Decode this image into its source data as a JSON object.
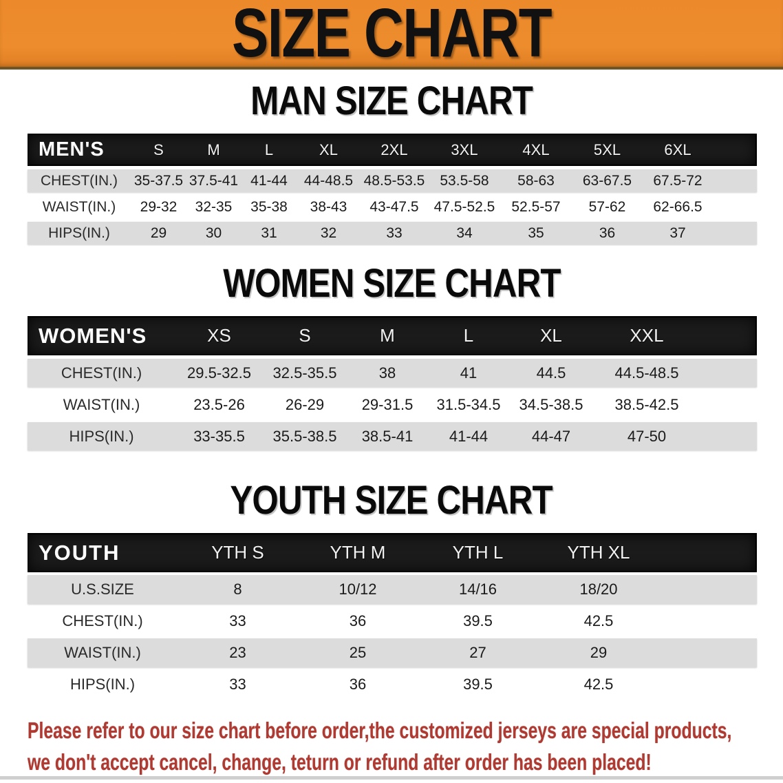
{
  "banner": {
    "title": "SIZE CHART"
  },
  "tables": {
    "men": {
      "heading": "MAN SIZE CHART",
      "label": "MEN'S",
      "columns": [
        "S",
        "M",
        "L",
        "XL",
        "2XL",
        "3XL",
        "4XL",
        "5XL",
        "6XL"
      ],
      "rows": [
        {
          "label": "CHEST(IN.)",
          "values": [
            "35-37.5",
            "37.5-41",
            "41-44",
            "44-48.5",
            "48.5-53.5",
            "53.5-58",
            "58-63",
            "63-67.5",
            "67.5-72"
          ]
        },
        {
          "label": "WAIST(IN.)",
          "values": [
            "29-32",
            "32-35",
            "35-38",
            "38-43",
            "43-47.5",
            "47.5-52.5",
            "52.5-57",
            "57-62",
            "62-66.5"
          ]
        },
        {
          "label": "HIPS(IN.)",
          "values": [
            "29",
            "30",
            "31",
            "32",
            "33",
            "34",
            "35",
            "36",
            "37"
          ]
        }
      ]
    },
    "women": {
      "heading": "WOMEN SIZE CHART",
      "label": "WOMEN'S",
      "columns": [
        "XS",
        "S",
        "M",
        "L",
        "XL",
        "XXL"
      ],
      "rows": [
        {
          "label": "CHEST(IN.)",
          "values": [
            "29.5-32.5",
            "32.5-35.5",
            "38",
            "41",
            "44.5",
            "44.5-48.5"
          ]
        },
        {
          "label": "WAIST(IN.)",
          "values": [
            "23.5-26",
            "26-29",
            "29-31.5",
            "31.5-34.5",
            "34.5-38.5",
            "38.5-42.5"
          ]
        },
        {
          "label": "HIPS(IN.)",
          "values": [
            "33-35.5",
            "35.5-38.5",
            "38.5-41",
            "41-44",
            "44-47",
            "47-50"
          ]
        }
      ]
    },
    "youth": {
      "heading": "YOUTH SIZE CHART",
      "label": "YOUTH",
      "columns": [
        "YTH S",
        "YTH M",
        "YTH L",
        "YTH XL"
      ],
      "rows": [
        {
          "label": "U.S.SIZE",
          "values": [
            "8",
            "10/12",
            "14/16",
            "18/20"
          ]
        },
        {
          "label": "CHEST(IN.)",
          "values": [
            "33",
            "36",
            "39.5",
            "42.5"
          ]
        },
        {
          "label": "WAIST(IN.)",
          "values": [
            "23",
            "25",
            "27",
            "29"
          ]
        },
        {
          "label": "HIPS(IN.)",
          "values": [
            "33",
            "36",
            "39.5",
            "42.5"
          ]
        }
      ]
    }
  },
  "disclaimer": {
    "line1": "Please refer to our size chart before order,the customized jerseys are special products,",
    "line2": "we don't accept cancel, change, teturn or refund after order has been placed!"
  },
  "colors": {
    "banner_bg": "#EC8A2B",
    "header_bg": "#1B1B1B",
    "row_shade": "#DCDCDC",
    "disclaimer_red": "#AF3A32"
  }
}
